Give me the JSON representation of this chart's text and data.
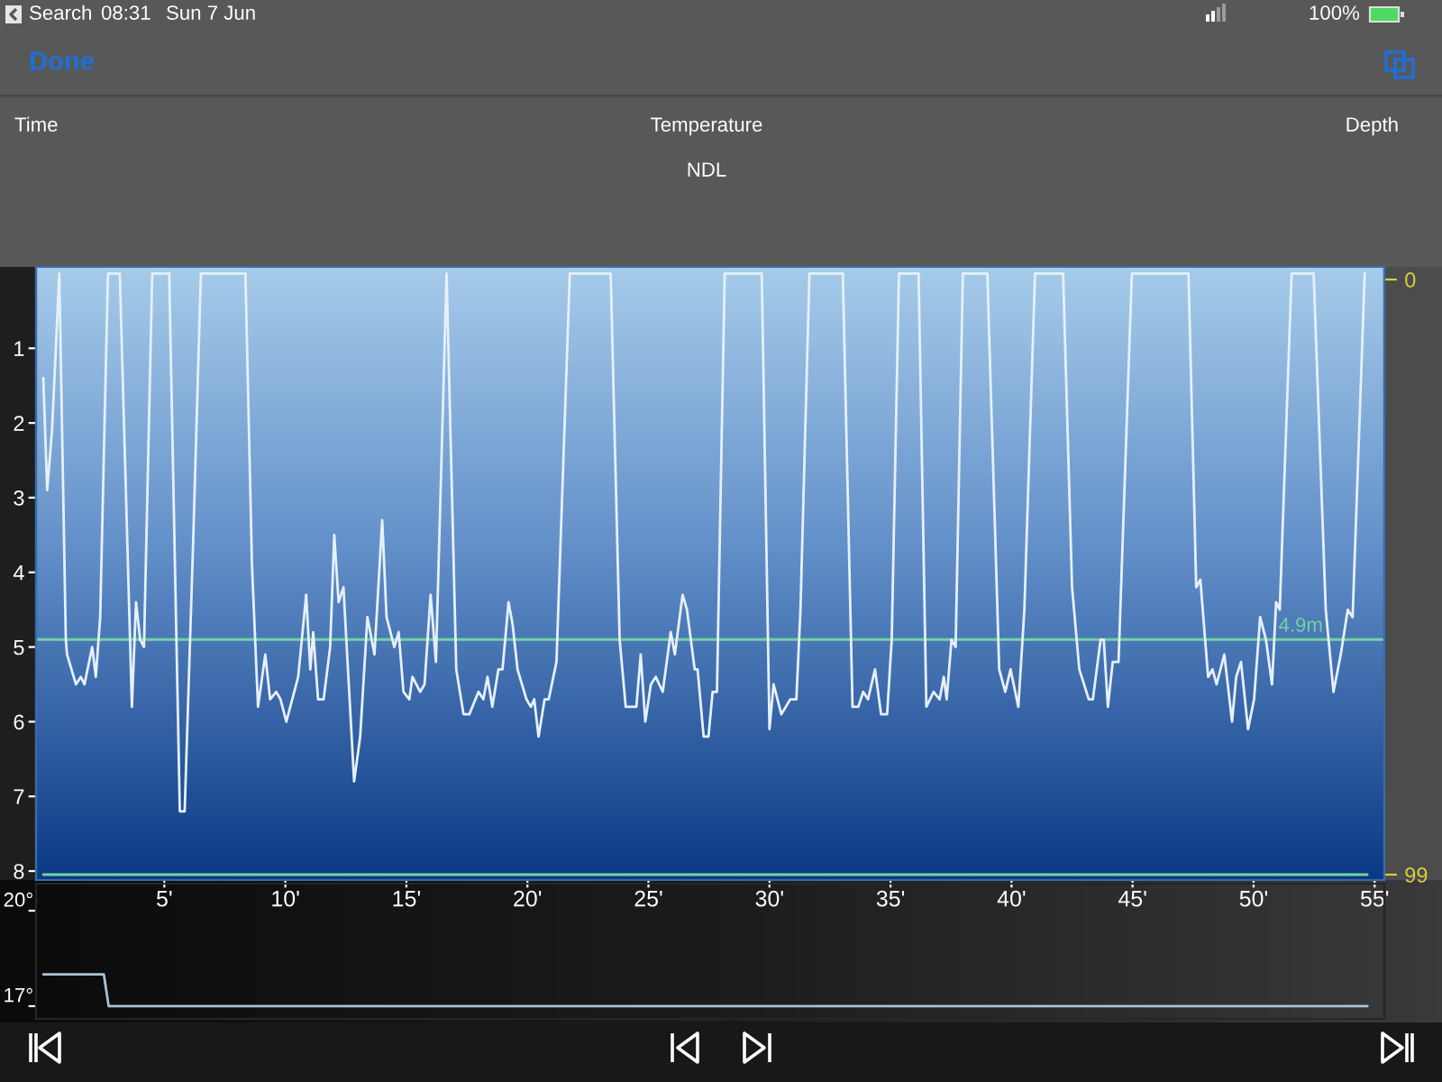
{
  "chart_data": [
    {
      "type": "line",
      "xlim": [
        -0.3,
        55.4
      ],
      "xticks": [
        {
          "value": 5,
          "label": "5'"
        },
        {
          "value": 10,
          "label": "10'"
        },
        {
          "value": 15,
          "label": "15'"
        },
        {
          "value": 20,
          "label": "20'"
        },
        {
          "value": 25,
          "label": "25'"
        },
        {
          "value": 30,
          "label": "30'"
        },
        {
          "value": 35,
          "label": "35'"
        },
        {
          "value": 40,
          "label": "40'"
        },
        {
          "value": 45,
          "label": "45'"
        },
        {
          "value": 50,
          "label": "50'"
        },
        {
          "value": 55,
          "label": "55'"
        }
      ],
      "ylim": [
        8.12,
        -0.09
      ],
      "yticks": [
        1,
        2,
        3,
        4,
        5,
        6,
        7,
        8
      ],
      "y2lim": [
        99.9,
        -2.1
      ],
      "y2ticks": [
        0,
        99
      ],
      "series": [
        {
          "color": "#e6f0fa",
          "x": [
            0.0,
            0.16,
            0.36,
            0.66,
            0.93,
            0.98,
            1.35,
            1.55,
            1.7,
            2.02,
            2.17,
            2.35,
            2.67,
            3.16,
            3.66,
            3.83,
            4.0,
            4.16,
            4.5,
            5.2,
            5.64,
            5.84,
            6.19,
            6.51,
            8.35,
            8.62,
            8.87,
            9.17,
            9.37,
            9.62,
            9.8,
            10.04,
            10.53,
            10.86,
            11.03,
            11.15,
            11.35,
            11.58,
            11.85,
            12.02,
            12.2,
            12.4,
            12.84,
            13.09,
            13.39,
            13.68,
            14.0,
            14.18,
            14.5,
            14.68,
            14.88,
            15.12,
            15.25,
            15.57,
            15.75,
            16.0,
            16.22,
            16.66,
            17.06,
            17.36,
            17.6,
            17.98,
            18.18,
            18.35,
            18.55,
            18.8,
            18.97,
            19.22,
            19.39,
            19.59,
            19.96,
            20.14,
            20.28,
            20.46,
            20.71,
            20.88,
            21.2,
            21.75,
            23.44,
            23.81,
            24.06,
            24.5,
            24.68,
            24.87,
            25.1,
            25.3,
            25.59,
            25.92,
            26.09,
            26.41,
            26.59,
            26.91,
            27.03,
            27.28,
            27.48,
            27.65,
            27.83,
            28.15,
            29.68,
            30.0,
            30.17,
            30.49,
            30.86,
            31.11,
            31.28,
            31.65,
            33.03,
            33.43,
            33.67,
            33.87,
            34.07,
            34.36,
            34.61,
            34.86,
            35.05,
            35.35,
            36.16,
            36.48,
            36.78,
            37.03,
            37.2,
            37.32,
            37.52,
            37.69,
            37.99,
            39.0,
            39.49,
            39.74,
            39.96,
            40.28,
            40.53,
            40.97,
            42.13,
            42.5,
            42.8,
            43.19,
            43.36,
            43.68,
            43.81,
            43.98,
            44.18,
            44.42,
            44.97,
            47.31,
            47.63,
            47.8,
            48.12,
            48.3,
            48.47,
            48.79,
            49.11,
            49.28,
            49.48,
            49.77,
            50.02,
            50.27,
            50.51,
            50.76,
            50.93,
            51.08,
            51.57,
            52.48,
            52.98,
            53.3,
            53.6,
            53.89,
            54.09,
            54.59
          ],
          "values": [
            1.4,
            2.9,
            2.1,
            0,
            4.9,
            5.1,
            5.5,
            5.4,
            5.5,
            5.0,
            5.4,
            4.6,
            0,
            0,
            5.8,
            4.4,
            4.9,
            5.0,
            0,
            0,
            7.2,
            7.2,
            3.6,
            0,
            0,
            3.9,
            5.8,
            5.1,
            5.7,
            5.6,
            5.7,
            6.0,
            5.4,
            4.3,
            5.3,
            4.8,
            5.7,
            5.7,
            5.0,
            3.5,
            4.4,
            4.2,
            6.8,
            6.2,
            4.6,
            5.1,
            3.3,
            4.6,
            5.0,
            4.8,
            5.6,
            5.7,
            5.4,
            5.6,
            5.5,
            4.3,
            5.2,
            0,
            5.3,
            5.9,
            5.9,
            5.6,
            5.7,
            5.4,
            5.8,
            5.3,
            5.3,
            4.4,
            4.7,
            5.3,
            5.7,
            5.8,
            5.7,
            6.2,
            5.7,
            5.7,
            5.2,
            0,
            0,
            4.9,
            5.8,
            5.8,
            5.1,
            6.0,
            5.5,
            5.4,
            5.6,
            4.8,
            5.1,
            4.3,
            4.5,
            5.3,
            5.3,
            6.2,
            6.2,
            5.6,
            5.6,
            0,
            0,
            6.1,
            5.5,
            5.9,
            5.7,
            5.7,
            4.5,
            0,
            0,
            5.8,
            5.8,
            5.6,
            5.7,
            5.3,
            5.9,
            5.9,
            4.9,
            0,
            0,
            5.8,
            5.6,
            5.7,
            5.4,
            5.7,
            4.9,
            5.0,
            0,
            0,
            5.3,
            5.6,
            5.3,
            5.8,
            4.5,
            0,
            0,
            4.2,
            5.3,
            5.7,
            5.7,
            4.9,
            4.9,
            5.8,
            5.2,
            5.2,
            0,
            0,
            4.2,
            4.1,
            5.4,
            5.3,
            5.5,
            5.1,
            6.0,
            5.4,
            5.2,
            6.1,
            5.7,
            4.6,
            4.9,
            5.5,
            4.4,
            4.5,
            0,
            0,
            4.5,
            5.6,
            5.1,
            4.5,
            4.6,
            0
          ]
        },
        {
          "axis": "y2",
          "color": "#72d3a4",
          "x": [
            0,
            54.7
          ],
          "values": [
            99,
            99
          ]
        }
      ],
      "ref_lines": [
        {
          "axis": "y",
          "value": 4.9,
          "label": "4.9m",
          "color": "#72d3a4"
        }
      ],
      "annotations": [
        "Search",
        "08:31",
        "Sun 7 Jun",
        "100%",
        "Done",
        "Time",
        "Temperature",
        "Depth",
        "NDL"
      ]
    },
    {
      "type": "line",
      "xlim": [
        -0.3,
        55.4
      ],
      "ylim": [
        16.6,
        20.85
      ],
      "yticks": [
        {
          "value": 20,
          "label": "20°"
        },
        {
          "value": 17,
          "label": "17°"
        }
      ],
      "tick_labels": "y",
      "x": [
        0,
        2.5,
        2.7,
        54.7
      ],
      "values": [
        18,
        18,
        17,
        17
      ],
      "color": "#a9c2da"
    }
  ]
}
